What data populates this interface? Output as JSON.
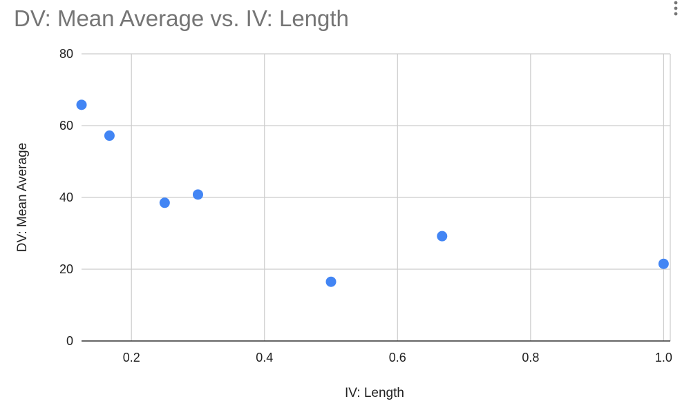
{
  "chart_data": {
    "type": "scatter",
    "title": "DV: Mean Average vs. IV: Length",
    "xlabel": "IV: Length",
    "ylabel": "DV: Mean Average",
    "xlim": [
      0.125,
      1.01
    ],
    "ylim": [
      0,
      80
    ],
    "xticks": [
      0.2,
      0.4,
      0.6,
      0.8,
      1.0
    ],
    "xtick_labels": [
      "0.2",
      "0.4",
      "0.6",
      "0.8",
      "1.0"
    ],
    "yticks": [
      0,
      20,
      40,
      60,
      80
    ],
    "ytick_labels": [
      "0",
      "20",
      "40",
      "60",
      "80"
    ],
    "grid": true,
    "legend": "none",
    "point_color": "#4285f4",
    "series": [
      {
        "points": [
          {
            "x": 0.125,
            "y": 65.8
          },
          {
            "x": 0.167,
            "y": 57.2
          },
          {
            "x": 0.25,
            "y": 38.5
          },
          {
            "x": 0.3,
            "y": 40.8
          },
          {
            "x": 0.5,
            "y": 16.5
          },
          {
            "x": 0.667,
            "y": 29.2
          },
          {
            "x": 1.0,
            "y": 21.5
          }
        ]
      }
    ]
  },
  "menu_icon": "more-vertical-icon"
}
